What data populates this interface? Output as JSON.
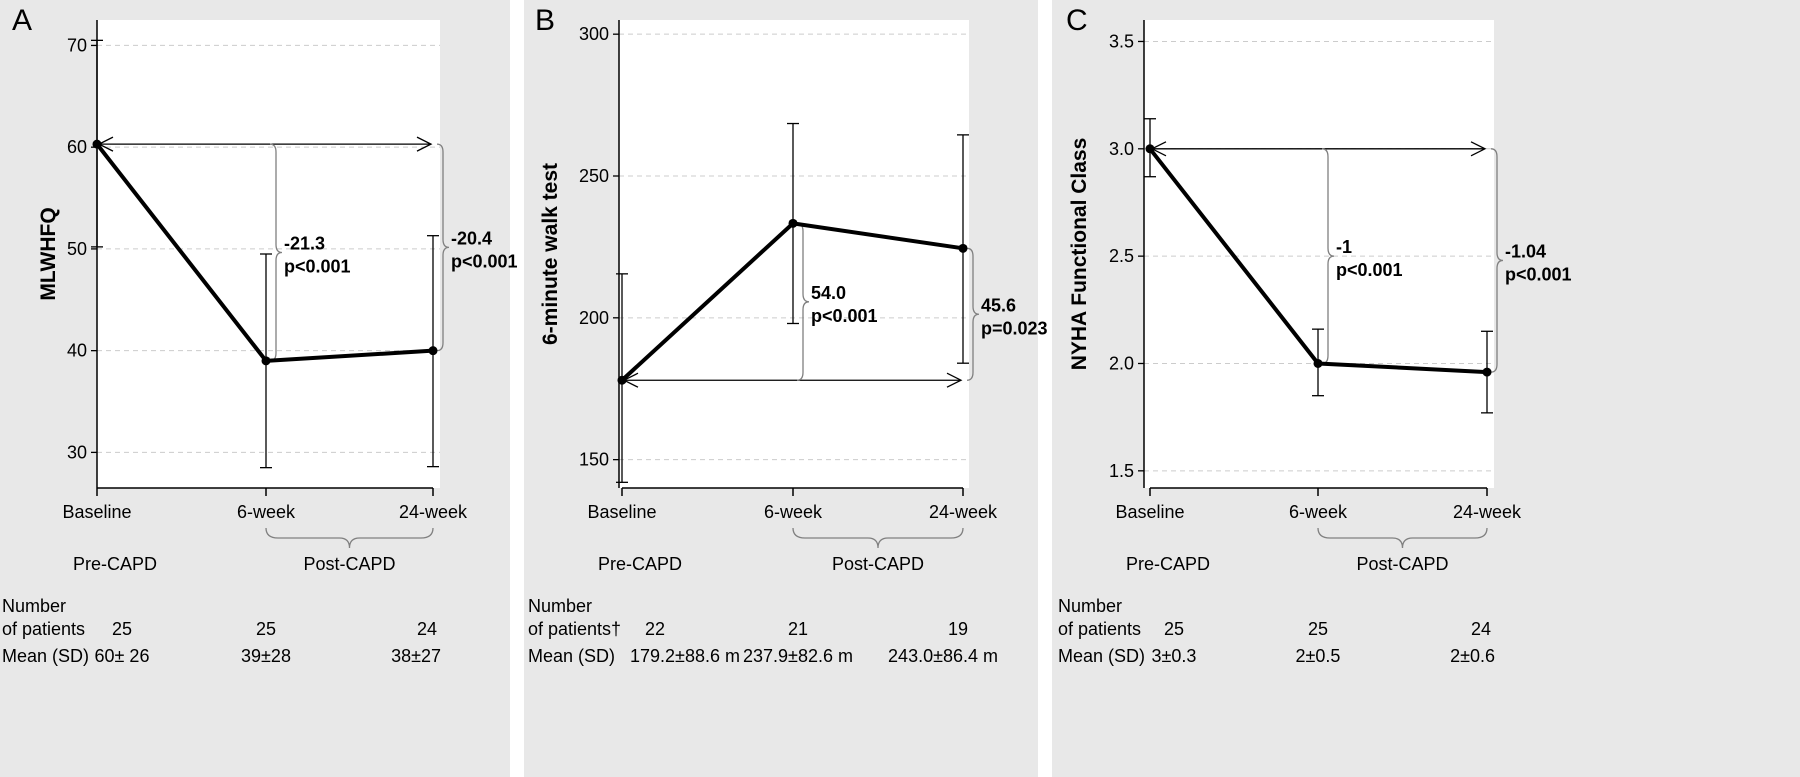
{
  "colors": {
    "panel_bg": "#e8e8e8",
    "plot_bg": "#ffffff",
    "grid": "#cccccc",
    "ink": "#000000",
    "bracket": "#808080"
  },
  "chart_data": [
    {
      "type": "line",
      "panel_letter": "A",
      "ylabel": "MLWHFQ",
      "categories": [
        "Baseline",
        "6-week",
        "24-week"
      ],
      "values": [
        60.3,
        39.0,
        40.0
      ],
      "error_low": [
        50.2,
        28.5,
        28.6
      ],
      "error_high": [
        70.5,
        49.5,
        51.3
      ],
      "ylim": [
        26.5,
        72.5
      ],
      "yticks": [
        30,
        40,
        50,
        60,
        70
      ],
      "grid": true,
      "annotations": [
        {
          "change": "-21.3",
          "p": "p<0.001"
        },
        {
          "change": "-20.4",
          "p": "p<0.001"
        }
      ],
      "group_labels": {
        "pre": "Pre-CAPD",
        "post": "Post-CAPD"
      },
      "table": {
        "n_label_1": "Number",
        "n_label_2": "of patients",
        "n_values": [
          "25",
          "25",
          "24"
        ],
        "mean_label": "Mean (SD)",
        "mean_values": [
          "60± 26",
          "39±28",
          "38±27"
        ]
      }
    },
    {
      "type": "line",
      "panel_letter": "B",
      "ylabel": "6-minute walk test",
      "categories": [
        "Baseline",
        "6-week",
        "24-week"
      ],
      "values": [
        178.0,
        233.3,
        224.5
      ],
      "error_low": [
        142.0,
        198.0,
        184.0
      ],
      "error_high": [
        215.5,
        268.5,
        264.5
      ],
      "ylim": [
        140,
        305
      ],
      "yticks": [
        150,
        200,
        250,
        300
      ],
      "grid": true,
      "annotations": [
        {
          "change": "54.0",
          "p": "p<0.001"
        },
        {
          "change": "45.6",
          "p": "p=0.023"
        }
      ],
      "group_labels": {
        "pre": "Pre-CAPD",
        "post": "Post-CAPD"
      },
      "table": {
        "n_label_1": "Number",
        "n_label_2": "of patients†",
        "n_values": [
          "22",
          "21",
          "19"
        ],
        "mean_label": "Mean (SD)",
        "mean_values": [
          "179.2±88.6 m",
          "237.9±82.6 m",
          "243.0±86.4 m"
        ]
      }
    },
    {
      "type": "line",
      "panel_letter": "C",
      "ylabel": "NYHA Functional Class",
      "categories": [
        "Baseline",
        "6-week",
        "24-week"
      ],
      "values": [
        3.0,
        2.0,
        1.96
      ],
      "error_low": [
        2.87,
        1.85,
        1.77
      ],
      "error_high": [
        3.14,
        2.16,
        2.15
      ],
      "ylim": [
        1.42,
        3.6
      ],
      "yticks": [
        1.5,
        2.0,
        2.5,
        3.0,
        3.5
      ],
      "grid": true,
      "annotations": [
        {
          "change": "-1",
          "p": "p<0.001"
        },
        {
          "change": "-1.04",
          "p": "p<0.001"
        }
      ],
      "group_labels": {
        "pre": "Pre-CAPD",
        "post": "Post-CAPD"
      },
      "table": {
        "n_label_1": "Number",
        "n_label_2": "of patients",
        "n_values": [
          "25",
          "25",
          "24"
        ],
        "mean_label": "Mean (SD)",
        "mean_values": [
          "3±0.3",
          "2±0.5",
          "2±0.6"
        ]
      }
    }
  ]
}
